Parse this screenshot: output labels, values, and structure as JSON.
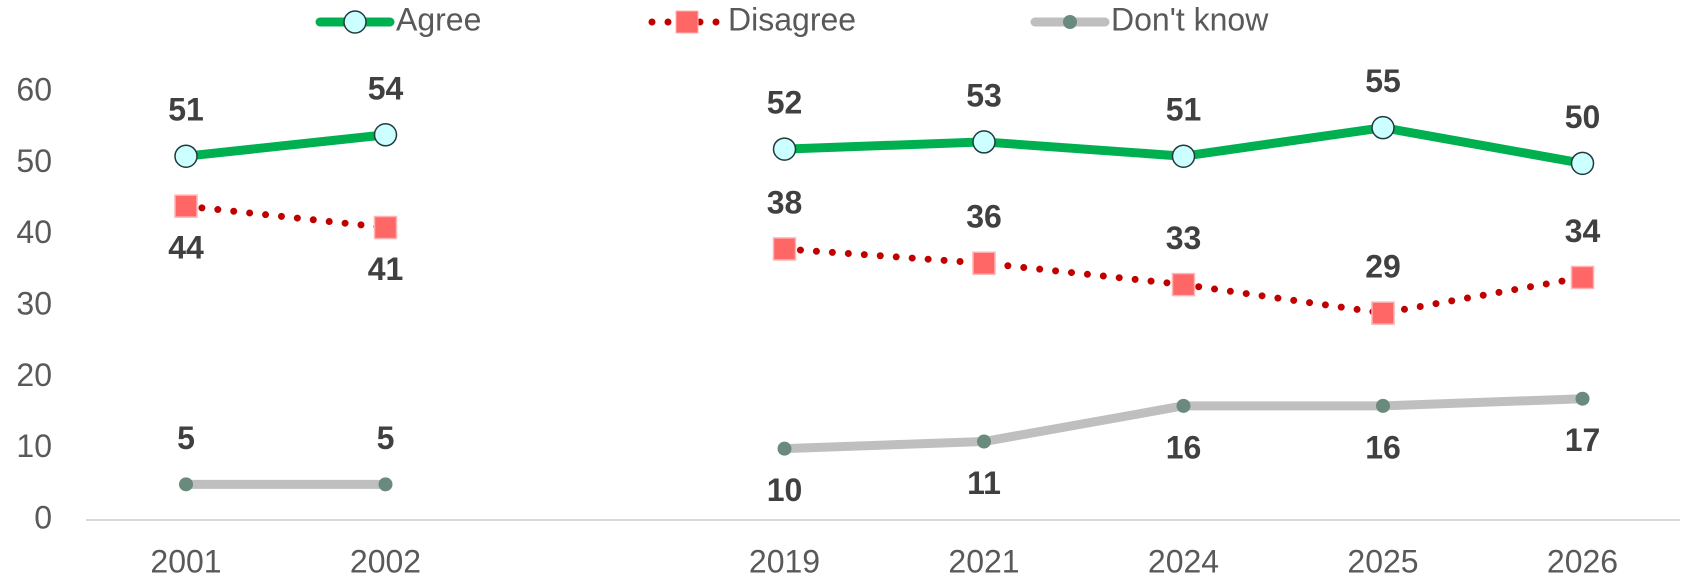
{
  "chart_data": {
    "type": "line",
    "categories": [
      "2001",
      "2002",
      null,
      "2019",
      "2021",
      "2024",
      "2025",
      "2026"
    ],
    "series": [
      {
        "name": "Agree",
        "color": "#00b050",
        "values": [
          51,
          54,
          null,
          52,
          53,
          51,
          55,
          50
        ]
      },
      {
        "name": "Disagree",
        "color": "#c00000",
        "values": [
          44,
          41,
          null,
          38,
          36,
          33,
          29,
          34
        ]
      },
      {
        "name": "Don't know",
        "color": "#bfbfbf",
        "values": [
          5,
          5,
          null,
          10,
          11,
          16,
          16,
          17
        ]
      }
    ],
    "ylim": [
      0,
      60
    ],
    "yticks": [
      0,
      10,
      20,
      30,
      40,
      50,
      60
    ],
    "grid": false,
    "legend": "top"
  }
}
